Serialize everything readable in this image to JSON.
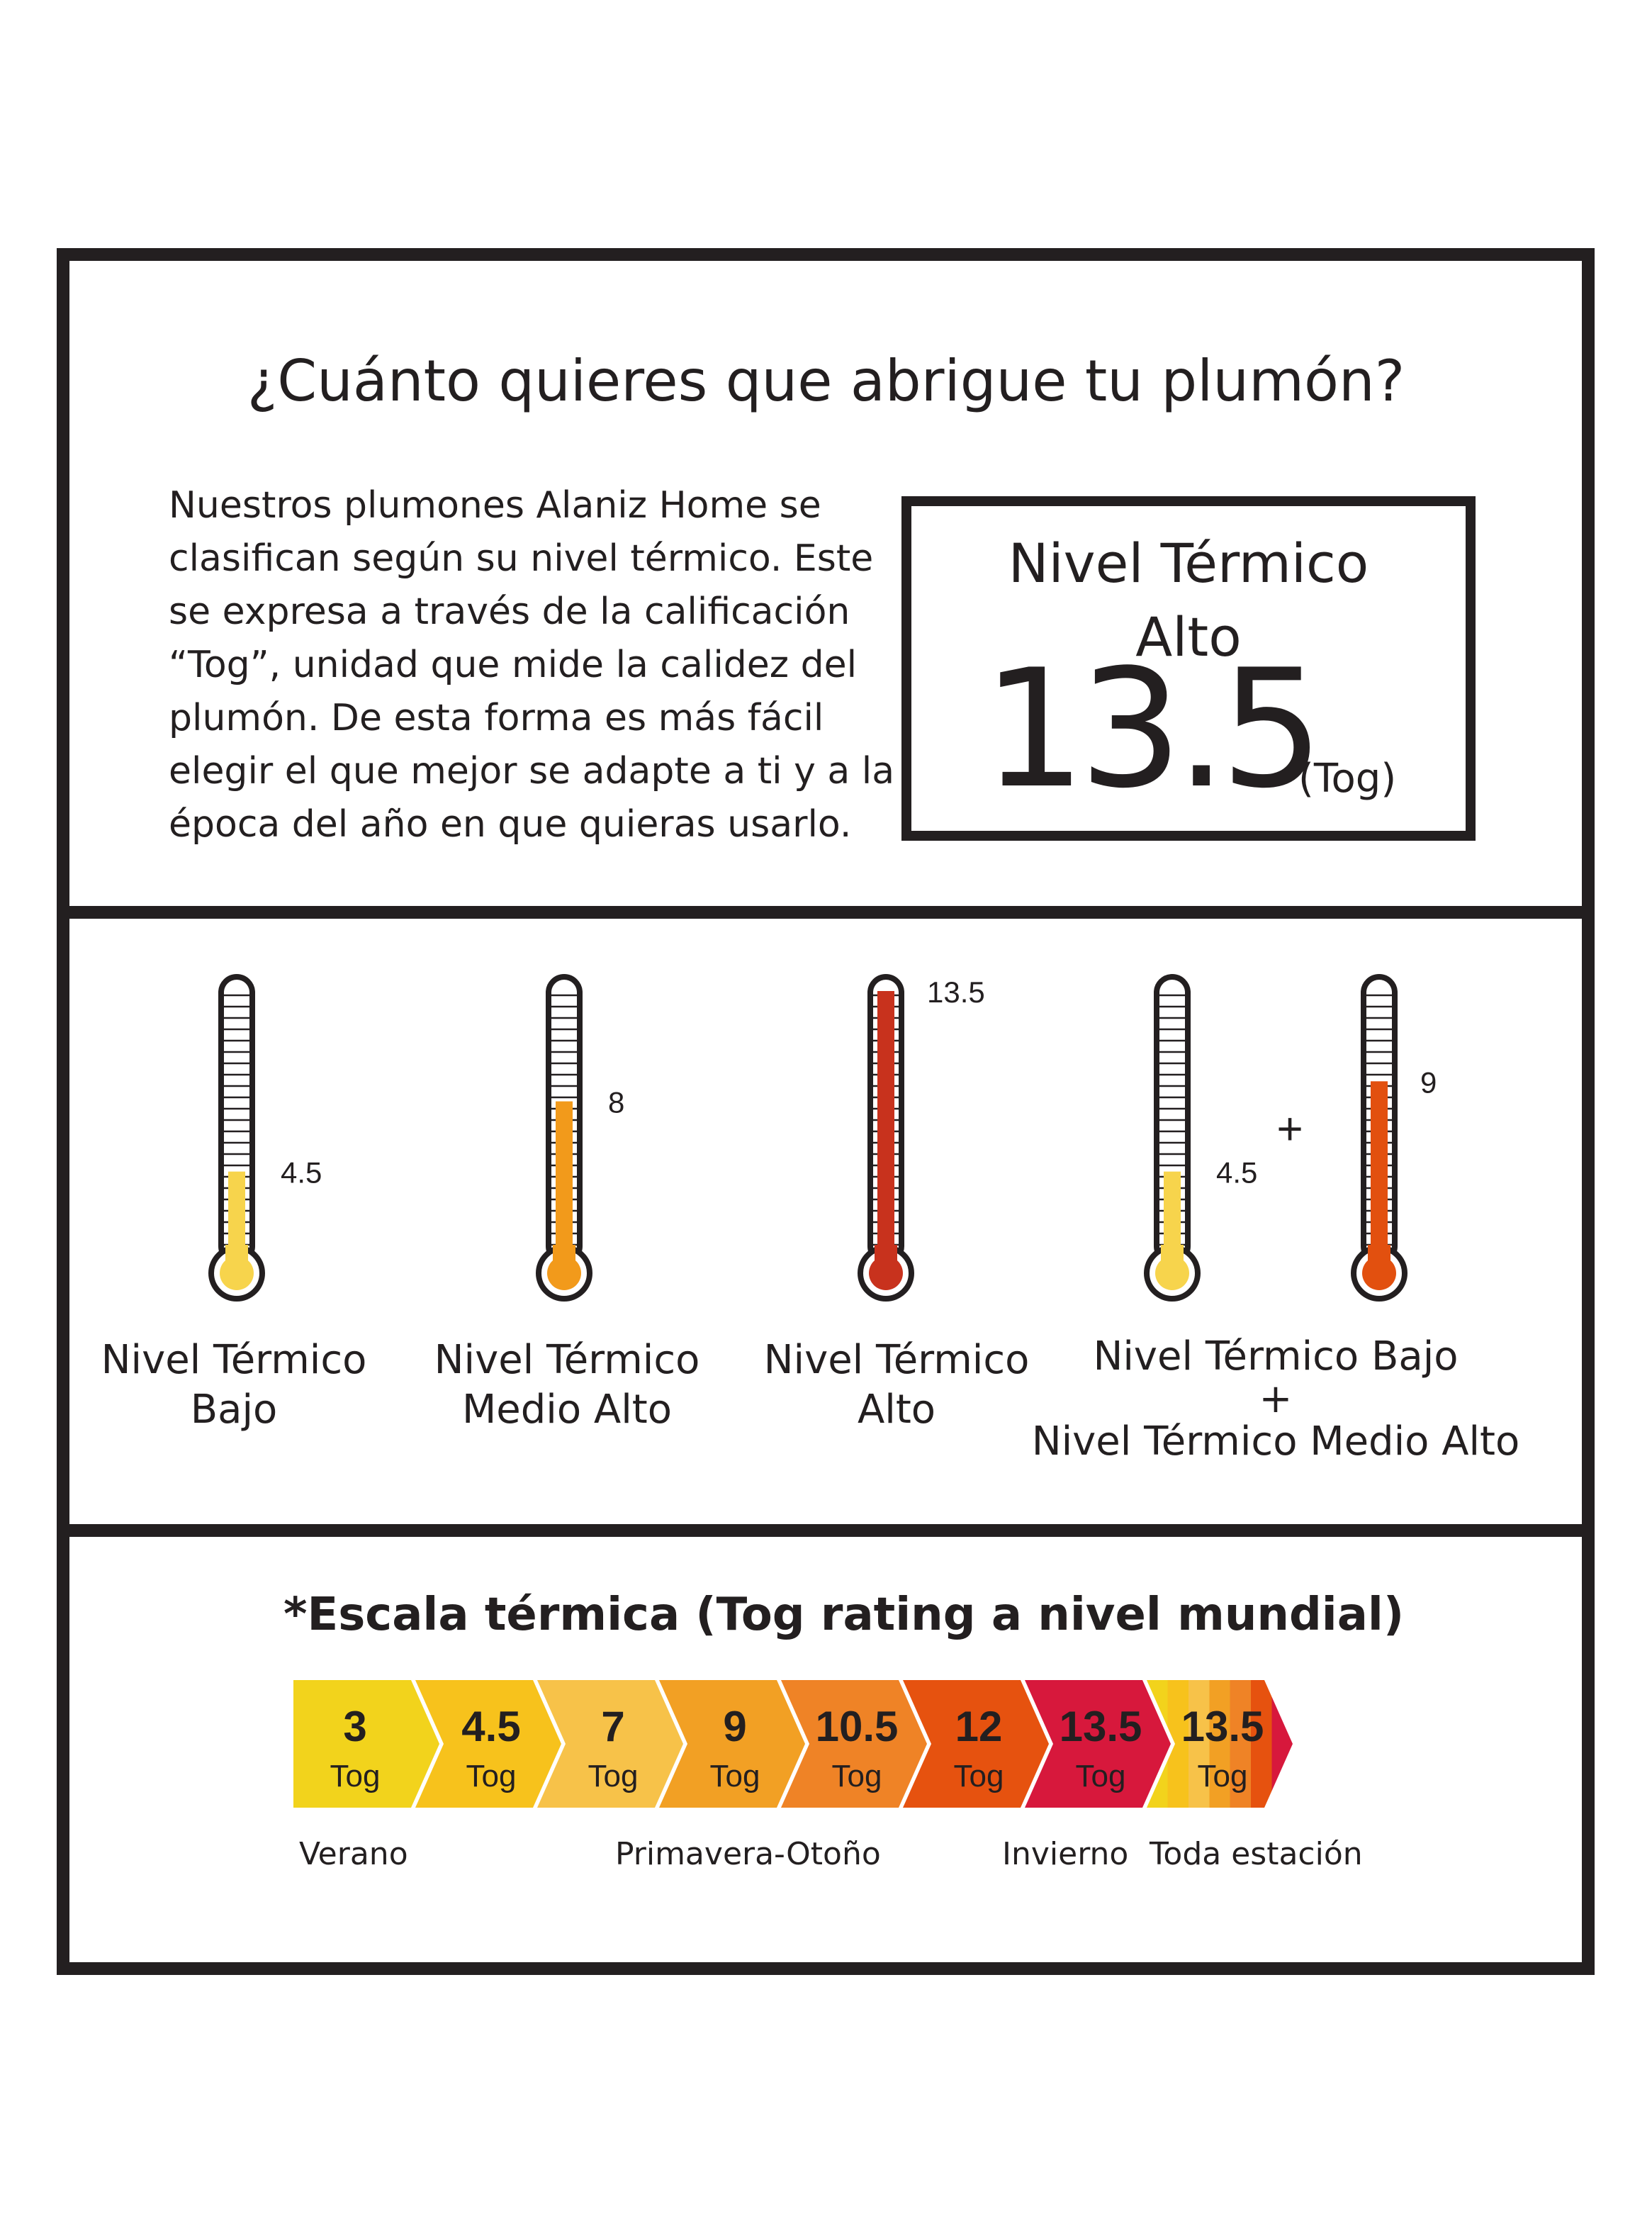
{
  "title": "¿Cuánto quieres que abrigue tu plumón?",
  "intro_lines": [
    "Nuestros plumones Alaniz Home se",
    "clasifican según su nivel térmico. Este",
    "se expresa a través  de la calificación",
    "“Tog”, unidad que mide la calidez del",
    "plumón. De esta forma es más fácil",
    "elegir el que mejor se adapte a ti y a la",
    "época del año en que quieras usarlo."
  ],
  "rating": {
    "line1": "Nivel Térmico",
    "line2": "Alto",
    "value": "13.5",
    "unit": "(Tog)"
  },
  "thermometers": [
    {
      "value": 4.5,
      "label": "4.5",
      "color": "#f7d44c"
    },
    {
      "value": 8,
      "label": "8",
      "color": "#f29a1b"
    },
    {
      "value": 13.5,
      "label": "13.5",
      "color": "#c8321d"
    },
    {
      "value": 4.5,
      "label": "4.5",
      "color": "#f7d44c"
    },
    {
      "value": 9,
      "label": "9",
      "color": "#e2500f"
    }
  ],
  "plus_sign": "+",
  "captions": [
    {
      "lines": [
        "Nivel Térmico",
        "Bajo"
      ]
    },
    {
      "lines": [
        "Nivel Térmico",
        "Medio Alto"
      ]
    },
    {
      "lines": [
        "Nivel Térmico",
        "Alto"
      ]
    },
    {
      "lines": [
        "Nivel Térmico Bajo",
        "+",
        "Nivel Térmico Medio Alto"
      ]
    }
  ],
  "scale": {
    "title": "*Escala térmica (Tog rating a nivel mundial)",
    "steps": [
      {
        "value": "3",
        "unit": "Tog",
        "color": "#f2d31c"
      },
      {
        "value": "4.5",
        "unit": "Tog",
        "color": "#f7c21c"
      },
      {
        "value": "7",
        "unit": "Tog",
        "color": "#f7c249"
      },
      {
        "value": "9",
        "unit": "Tog",
        "color": "#f2a024"
      },
      {
        "value": "10.5",
        "unit": "Tog",
        "color": "#ef8326"
      },
      {
        "value": "12",
        "unit": "Tog",
        "color": "#e6520f"
      },
      {
        "value": "13.5",
        "unit": "Tog",
        "color": "#d7183c"
      },
      {
        "value": "13.5",
        "unit": "Tog",
        "color": "multicolor",
        "gradient": [
          "#f2d31c",
          "#f7c21c",
          "#f7c249",
          "#f2a024",
          "#ef8326",
          "#e6520f",
          "#d7183c"
        ]
      }
    ],
    "seasons": [
      "Verano",
      "Primavera-Otoño",
      "Invierno",
      "Toda estación"
    ]
  },
  "colors": {
    "frame": "#231f20",
    "text": "#231f20"
  }
}
